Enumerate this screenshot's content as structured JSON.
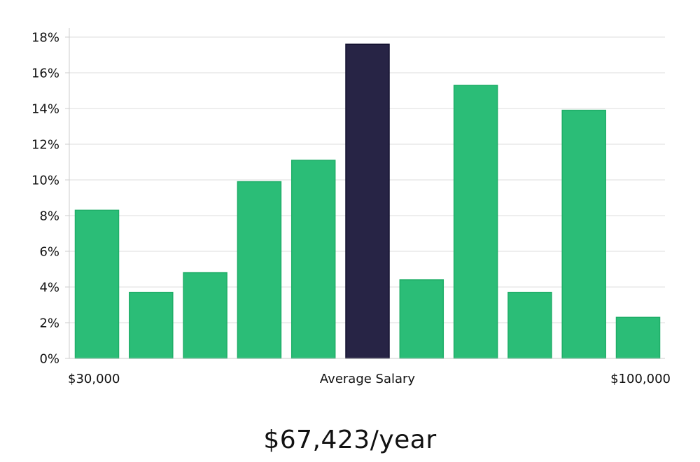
{
  "chart_data": {
    "type": "bar",
    "categories": [
      "1",
      "2",
      "3",
      "4",
      "5",
      "6",
      "7",
      "8",
      "9",
      "10",
      "11"
    ],
    "values": [
      8.3,
      3.7,
      4.8,
      9.9,
      11.1,
      17.6,
      4.4,
      15.3,
      3.7,
      13.9,
      2.3
    ],
    "highlight_index": 5,
    "ylim": [
      0,
      18
    ],
    "yticks": [
      0,
      2,
      4,
      6,
      8,
      10,
      12,
      14,
      16,
      18
    ],
    "y_tick_suffix": "%",
    "x_labels": {
      "left": "$30,000",
      "center": "Average Salary",
      "right": "$100,000"
    },
    "grid": true,
    "colors": {
      "bar": "#2bbd77",
      "bar_edge": "#1fae68",
      "highlight": "#272445",
      "highlight_edge": "#141230",
      "grid": "#dddddd",
      "axis": "#cccccc"
    }
  },
  "salary_text": "$67,423/year"
}
